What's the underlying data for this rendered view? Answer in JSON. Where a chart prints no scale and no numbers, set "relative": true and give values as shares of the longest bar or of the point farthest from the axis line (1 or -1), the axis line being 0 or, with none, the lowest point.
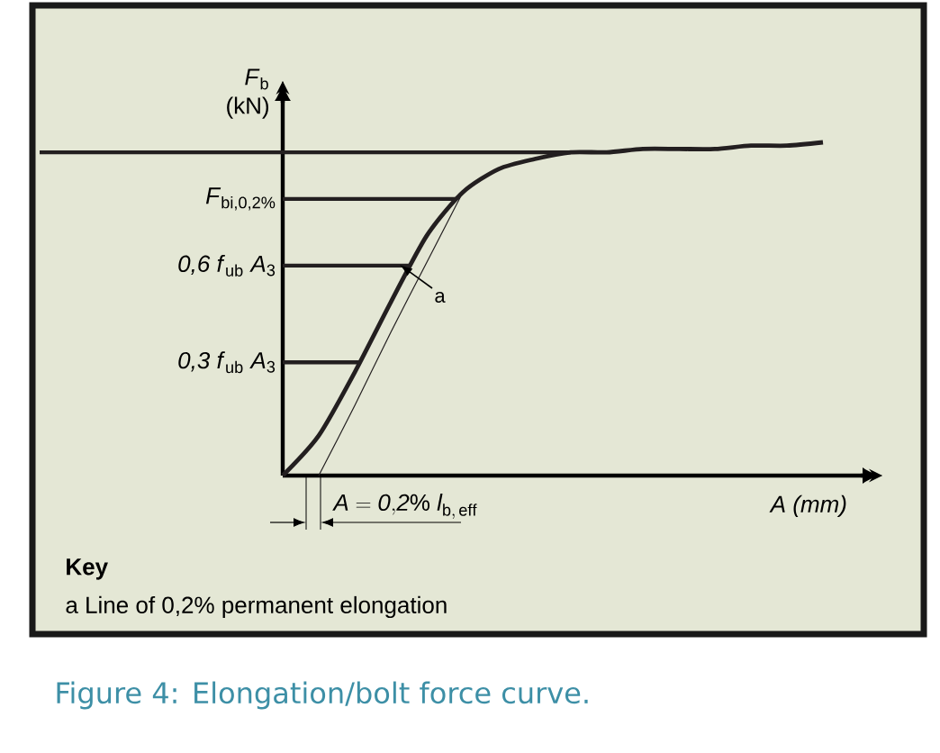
{
  "chart_data": {
    "type": "line",
    "relative": true,
    "ylabel": "*F*$_{b}$ (kN)",
    "xlabel": "*A (mm)*",
    "categories": [
      null,
      null,
      null,
      null,
      null,
      null,
      null,
      null,
      null,
      null,
      null,
      null,
      null,
      null,
      null,
      null
    ],
    "series": [
      {
        "color": "#231f20",
        "values": [
          0,
          0.12,
          0.31,
          0.52,
          0.72,
          0.85,
          0.92,
          0.95,
          0.97,
          0.97,
          0.98,
          0.98,
          0.98,
          0.99,
          0.99,
          1
        ]
      },
      {
        "color": "#231f20",
        "values": [
          null,
          0,
          0.21,
          0.43,
          0.64,
          0.85,
          null,
          null,
          null,
          null,
          null,
          null,
          null,
          null,
          null,
          null
        ]
      }
    ],
    "ref_lines": [
      {
        "axis": "y",
        "value": 0.97,
        "color": "#231f20"
      },
      {
        "axis": "y",
        "value": 0.83,
        "label": "*F*$_{bi,0,2%}$",
        "color": "#231f20"
      },
      {
        "axis": "y",
        "value": 0.63,
        "label": "*0,6 f*$_{ub}$ *A*$_{3}$",
        "color": "#231f20"
      },
      {
        "axis": "y",
        "value": 0.34,
        "label": "*0,3 f*$_{ub}$ *A*$_{3}$",
        "color": "#231f20"
      }
    ],
    "annotations": [
      "a",
      "\\mathit{A = 0{,}2\\%\\ l}_{\\mathrm{b,\\,eff}}",
      "Key",
      "a  Line of 0,2% permanent elongation",
      "Figure 4: Elongation/bolt force curve."
    ]
  }
}
